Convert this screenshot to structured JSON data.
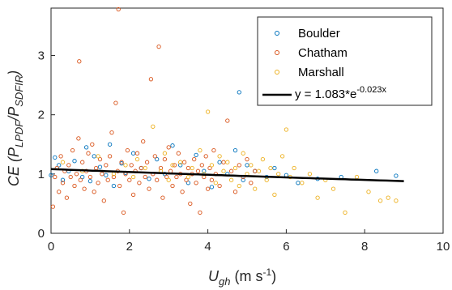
{
  "chart_data": {
    "type": "scatter",
    "xlabel": {
      "main": "U",
      "sub": "gh",
      "unit_pre": " (m s",
      "unit_sup": "-1",
      "unit_post": ")"
    },
    "ylabel": {
      "main": "CE (P",
      "sub1": "LPDF",
      "slash": "/P",
      "sub2": "SDFIR",
      "close": ")"
    },
    "xlim": [
      0,
      10
    ],
    "ylim": [
      0,
      3.8
    ],
    "x_ticks": [
      "0",
      "2",
      "4",
      "6",
      "8",
      "10"
    ],
    "y_ticks": [
      "0",
      "1",
      "2",
      "3"
    ],
    "grid": false,
    "legend_position": "top-right",
    "series": [
      {
        "name": "Boulder",
        "color": "#0072BD",
        "marker": "circle-open",
        "points": [
          [
            0.0,
            0.98
          ],
          [
            0.1,
            1.28
          ],
          [
            0.2,
            1.15
          ],
          [
            0.3,
            0.9
          ],
          [
            0.45,
            1.05
          ],
          [
            0.6,
            1.22
          ],
          [
            0.8,
            0.95
          ],
          [
            0.9,
            1.45
          ],
          [
            1.0,
            0.88
          ],
          [
            1.1,
            1.3
          ],
          [
            1.25,
            1.12
          ],
          [
            1.4,
            0.98
          ],
          [
            1.5,
            1.5
          ],
          [
            1.6,
            0.8
          ],
          [
            1.8,
            1.18
          ],
          [
            1.9,
            1.02
          ],
          [
            2.1,
            1.35
          ],
          [
            2.3,
            1.1
          ],
          [
            2.5,
            0.92
          ],
          [
            2.7,
            1.25
          ],
          [
            2.9,
            1.0
          ],
          [
            3.1,
            1.48
          ],
          [
            3.3,
            1.15
          ],
          [
            3.5,
            0.85
          ],
          [
            3.7,
            1.32
          ],
          [
            3.9,
            1.05
          ],
          [
            4.1,
            0.78
          ],
          [
            4.3,
            1.2
          ],
          [
            4.5,
            1.0
          ],
          [
            4.7,
            1.4
          ],
          [
            4.8,
            2.38
          ],
          [
            4.9,
            0.9
          ],
          [
            5.0,
            1.15
          ],
          [
            5.2,
            1.05
          ],
          [
            5.5,
            0.95
          ],
          [
            5.7,
            1.1
          ],
          [
            6.0,
            0.98
          ],
          [
            6.3,
            0.85
          ],
          [
            6.8,
            0.92
          ],
          [
            7.4,
            0.95
          ],
          [
            8.3,
            1.05
          ],
          [
            8.8,
            0.97
          ]
        ]
      },
      {
        "name": "Chatham",
        "color": "#D95319",
        "marker": "circle-open",
        "points": [
          [
            0.05,
            0.45
          ],
          [
            0.1,
            0.95
          ],
          [
            0.15,
            1.1
          ],
          [
            0.2,
            0.7
          ],
          [
            0.25,
            1.3
          ],
          [
            0.3,
            0.85
          ],
          [
            0.35,
            1.05
          ],
          [
            0.4,
            0.6
          ],
          [
            0.45,
            1.15
          ],
          [
            0.5,
            0.95
          ],
          [
            0.55,
            1.4
          ],
          [
            0.6,
            0.8
          ],
          [
            0.65,
            1.0
          ],
          [
            0.7,
            1.6
          ],
          [
            0.72,
            2.9
          ],
          [
            0.75,
            0.9
          ],
          [
            0.8,
            1.2
          ],
          [
            0.85,
            0.75
          ],
          [
            0.9,
            1.05
          ],
          [
            0.95,
            1.35
          ],
          [
            1.0,
            0.95
          ],
          [
            1.05,
            1.5
          ],
          [
            1.1,
            0.7
          ],
          [
            1.15,
            1.1
          ],
          [
            1.2,
            0.85
          ],
          [
            1.25,
            1.25
          ],
          [
            1.3,
            1.0
          ],
          [
            1.35,
            0.55
          ],
          [
            1.4,
            1.15
          ],
          [
            1.45,
            0.9
          ],
          [
            1.5,
            1.3
          ],
          [
            1.55,
            1.7
          ],
          [
            1.6,
            0.95
          ],
          [
            1.65,
            2.2
          ],
          [
            1.7,
            1.05
          ],
          [
            1.72,
            3.78
          ],
          [
            1.75,
            0.8
          ],
          [
            1.8,
            1.2
          ],
          [
            1.85,
            0.35
          ],
          [
            1.9,
            1.0
          ],
          [
            1.95,
            1.4
          ],
          [
            2.0,
            0.9
          ],
          [
            2.05,
            1.15
          ],
          [
            2.1,
            0.65
          ],
          [
            2.15,
            1.05
          ],
          [
            2.2,
            1.35
          ],
          [
            2.25,
            0.85
          ],
          [
            2.3,
            1.1
          ],
          [
            2.35,
            1.55
          ],
          [
            2.4,
            0.95
          ],
          [
            2.45,
            1.2
          ],
          [
            2.5,
            0.75
          ],
          [
            2.55,
            2.6
          ],
          [
            2.6,
            1.0
          ],
          [
            2.65,
            1.3
          ],
          [
            2.7,
            0.9
          ],
          [
            2.75,
            3.15
          ],
          [
            2.8,
            1.1
          ],
          [
            2.85,
            0.6
          ],
          [
            2.9,
            1.25
          ],
          [
            2.95,
            0.95
          ],
          [
            3.0,
            1.45
          ],
          [
            3.05,
            1.05
          ],
          [
            3.1,
            0.8
          ],
          [
            3.15,
            1.15
          ],
          [
            3.2,
            0.95
          ],
          [
            3.25,
            1.35
          ],
          [
            3.3,
            1.0
          ],
          [
            3.35,
            0.7
          ],
          [
            3.4,
            1.2
          ],
          [
            3.45,
            0.9
          ],
          [
            3.5,
            1.1
          ],
          [
            3.55,
            0.5
          ],
          [
            3.6,
            1.0
          ],
          [
            3.65,
            1.25
          ],
          [
            3.7,
            0.85
          ],
          [
            3.75,
            1.05
          ],
          [
            3.8,
            0.35
          ],
          [
            3.85,
            1.15
          ],
          [
            3.9,
            0.95
          ],
          [
            3.95,
            1.3
          ],
          [
            4.0,
            0.75
          ],
          [
            4.05,
            1.1
          ],
          [
            4.1,
            0.9
          ],
          [
            4.15,
            1.4
          ],
          [
            4.2,
            1.0
          ],
          [
            4.3,
            0.8
          ],
          [
            4.4,
            1.2
          ],
          [
            4.5,
            1.9
          ],
          [
            4.6,
            1.05
          ],
          [
            4.7,
            0.7
          ],
          [
            4.8,
            1.15
          ],
          [
            4.9,
            0.95
          ],
          [
            5.0,
            1.25
          ],
          [
            5.1,
            0.85
          ],
          [
            5.2,
            1.05
          ]
        ]
      },
      {
        "name": "Marshall",
        "color": "#EDB120",
        "marker": "circle-open",
        "points": [
          [
            0.3,
            1.2
          ],
          [
            0.8,
            1.05
          ],
          [
            1.2,
            1.3
          ],
          [
            1.6,
            1.0
          ],
          [
            1.9,
            1.15
          ],
          [
            2.1,
            0.95
          ],
          [
            2.2,
            1.25
          ],
          [
            2.4,
            1.1
          ],
          [
            2.6,
            1.8
          ],
          [
            2.8,
            1.05
          ],
          [
            2.9,
            1.35
          ],
          [
            3.0,
            0.9
          ],
          [
            3.1,
            1.15
          ],
          [
            3.3,
            1.2
          ],
          [
            3.5,
            0.95
          ],
          [
            3.6,
            1.1
          ],
          [
            3.8,
            1.4
          ],
          [
            3.9,
            1.0
          ],
          [
            4.0,
            2.05
          ],
          [
            4.1,
            1.15
          ],
          [
            4.2,
            0.85
          ],
          [
            4.3,
            1.3
          ],
          [
            4.4,
            1.05
          ],
          [
            4.5,
            1.2
          ],
          [
            4.6,
            0.9
          ],
          [
            4.7,
            1.1
          ],
          [
            4.8,
            0.8
          ],
          [
            4.9,
            1.35
          ],
          [
            5.0,
            1.0
          ],
          [
            5.1,
            1.15
          ],
          [
            5.2,
            0.75
          ],
          [
            5.3,
            1.05
          ],
          [
            5.4,
            1.25
          ],
          [
            5.5,
            0.9
          ],
          [
            5.6,
            1.1
          ],
          [
            5.7,
            0.65
          ],
          [
            5.8,
            1.0
          ],
          [
            5.9,
            1.3
          ],
          [
            6.0,
            1.75
          ],
          [
            6.1,
            0.95
          ],
          [
            6.2,
            1.1
          ],
          [
            6.4,
            0.85
          ],
          [
            6.6,
            1.0
          ],
          [
            6.8,
            0.6
          ],
          [
            7.0,
            0.9
          ],
          [
            7.2,
            0.75
          ],
          [
            7.5,
            0.35
          ],
          [
            7.8,
            0.95
          ],
          [
            8.1,
            0.7
          ],
          [
            8.4,
            0.55
          ],
          [
            8.6,
            0.6
          ],
          [
            8.8,
            0.55
          ]
        ]
      }
    ],
    "fit": {
      "name": "y = 1.083*e",
      "exponent": "-0.023x",
      "color": "#000000",
      "a": 1.083,
      "b": -0.023,
      "x_range": [
        0,
        9
      ]
    }
  }
}
